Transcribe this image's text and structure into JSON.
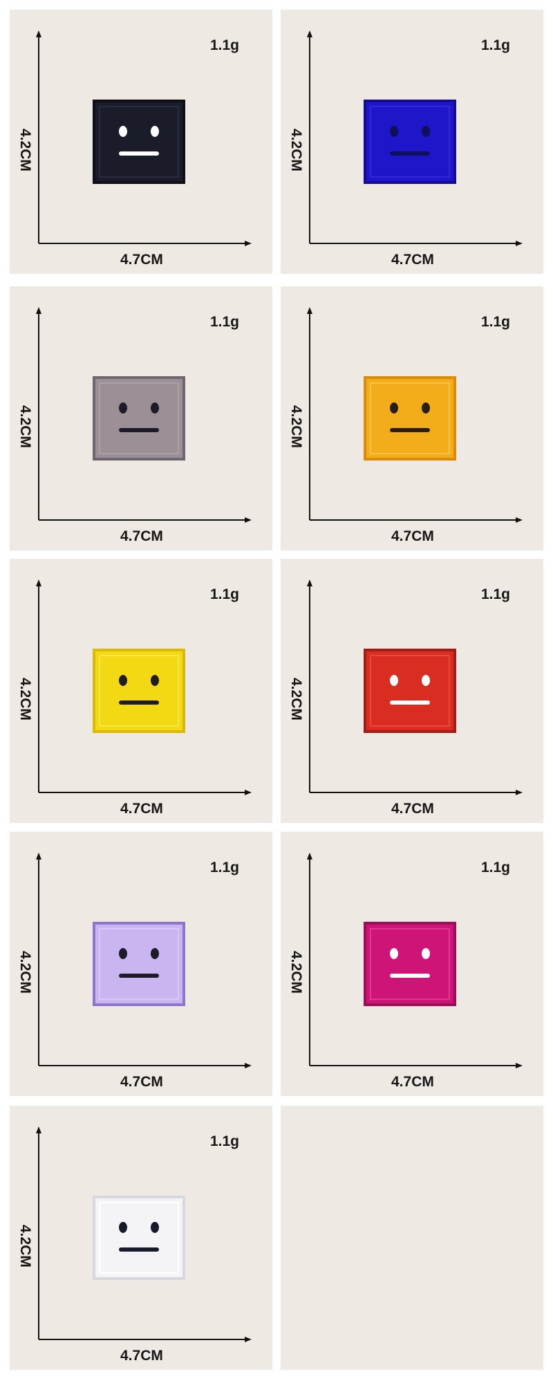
{
  "panels": [
    {
      "weight": "1.1g",
      "height": "4.2CM",
      "width": "4.7CM",
      "patch_color": "#1b1c2a",
      "border_color": "#0e0f18",
      "face_color": "#ffffff"
    },
    {
      "weight": "1.1g",
      "height": "4.2CM",
      "width": "4.7CM",
      "patch_color": "#2016c9",
      "border_color": "#140c93",
      "face_color": "#0f0f5a"
    },
    {
      "weight": "1.1g",
      "height": "4.2CM",
      "width": "4.7CM",
      "patch_color": "#9a9096",
      "border_color": "#6f6770",
      "face_color": "#1d1b2a"
    },
    {
      "weight": "1.1g",
      "height": "4.2CM",
      "width": "4.7CM",
      "patch_color": "#f3ad1b",
      "border_color": "#d98c0a",
      "face_color": "#2a1d14"
    },
    {
      "weight": "1.1g",
      "height": "4.2CM",
      "width": "4.7CM",
      "patch_color": "#f2d913",
      "border_color": "#d9b90a",
      "face_color": "#1d1d22"
    },
    {
      "weight": "1.1g",
      "height": "4.2CM",
      "width": "4.7CM",
      "patch_color": "#d92d22",
      "border_color": "#9f1f18",
      "face_color": "#ffffff"
    },
    {
      "weight": "1.1g",
      "height": "4.2CM",
      "width": "4.7CM",
      "patch_color": "#c9b6f0",
      "border_color": "#8d74cc",
      "face_color": "#1d1b2a"
    },
    {
      "weight": "1.1g",
      "height": "4.2CM",
      "width": "4.7CM",
      "patch_color": "#cf1477",
      "border_color": "#9b0f58",
      "face_color": "#ffffff"
    },
    {
      "weight": "1.1g",
      "height": "4.2CM",
      "width": "4.7CM",
      "patch_color": "#f4f4f7",
      "border_color": "#d7d7df",
      "face_color": "#171a2a"
    }
  ]
}
